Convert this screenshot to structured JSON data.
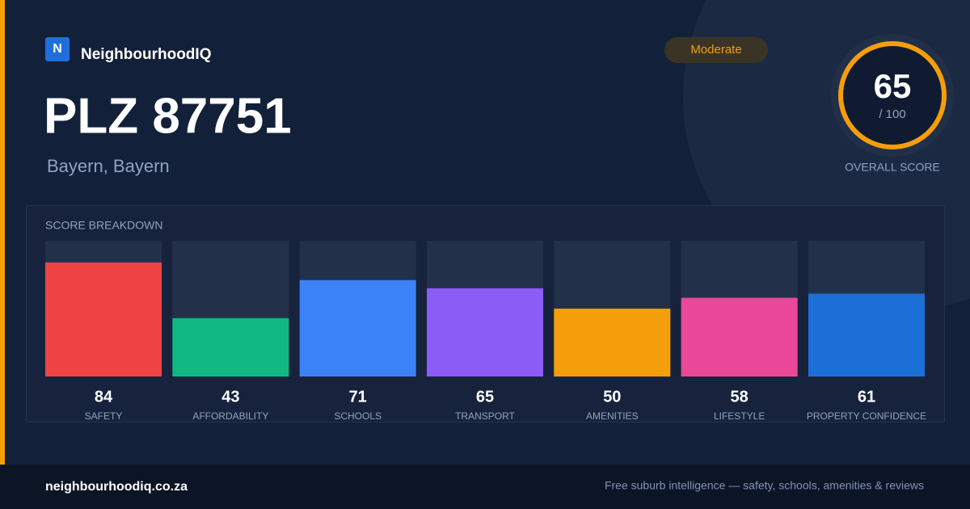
{
  "brand": {
    "logo": "N",
    "name": "NeighbourhoodIQ"
  },
  "badge": "Moderate",
  "title": "PLZ 87751",
  "subtitle": "Bayern, Bayern",
  "overall": {
    "score": "65",
    "max_label": "/ 100",
    "label": "OVERALL SCORE"
  },
  "chart_data": {
    "type": "bar",
    "title": "SCORE BREAKDOWN",
    "categories": [
      "SAFETY",
      "AFFORDABILITY",
      "SCHOOLS",
      "TRANSPORT",
      "AMENITIES",
      "LIFESTYLE",
      "PROPERTY CONFIDENCE"
    ],
    "values": [
      84,
      43,
      71,
      65,
      50,
      58,
      61
    ],
    "colors": [
      "#ef4444",
      "#10b981",
      "#3b82f6",
      "#8b5cf6",
      "#f59e0b",
      "#ec4899",
      "#1d6fd8"
    ],
    "ylim": [
      0,
      100
    ]
  },
  "footer": {
    "url": "neighbourhoodiq.co.za",
    "tagline": "Free suburb intelligence — safety, schools, amenities & reviews"
  }
}
